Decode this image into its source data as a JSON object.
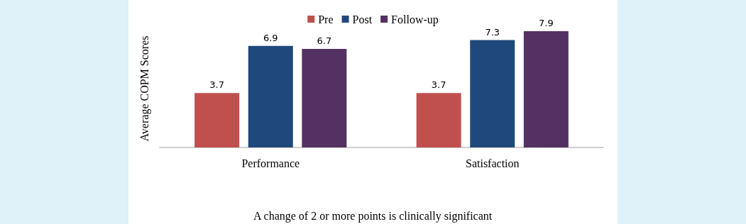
{
  "chart_data": {
    "type": "bar",
    "ylabel": "Average COPM Scores",
    "categories": [
      "Performance",
      "Satisfaction"
    ],
    "series": [
      {
        "name": "Pre",
        "color": "#c0504d",
        "values": [
          3.7,
          3.7
        ]
      },
      {
        "name": "Post",
        "color": "#1f497d",
        "values": [
          6.9,
          7.3
        ]
      },
      {
        "name": "Follow-up",
        "color": "#543163",
        "values": [
          6.7,
          7.9
        ]
      }
    ],
    "data_labels": true,
    "legend": "top",
    "grid": false,
    "annotations": [
      "A change of 2 or more points is clinically significant"
    ]
  }
}
